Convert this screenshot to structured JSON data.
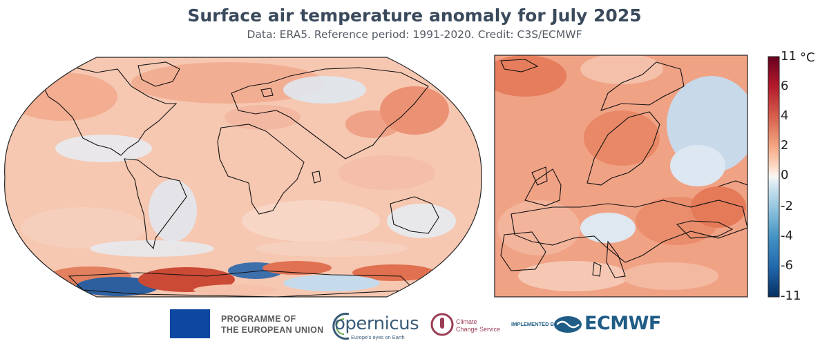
{
  "title": "Surface air temperature anomaly for July 2025",
  "subtitle": "Data: ERA5.  Reference period: 1991-2020.  Credit: C3S/ECMWF",
  "colorbar": {
    "unit": "°C",
    "ticks": [
      "11",
      "6",
      "4",
      "2",
      "0",
      "-2",
      "-4",
      "-6",
      "-11"
    ],
    "colors": [
      "#67001f",
      "#b2182b",
      "#d6604d",
      "#f4a582",
      "#fddbc7",
      "#f7f7f7",
      "#d1e5f0",
      "#92c5de",
      "#4393c3",
      "#2166ac",
      "#053061"
    ]
  },
  "logos": {
    "eu_line1": "PROGRAMME OF",
    "eu_line2": "THE EUROPEAN UNION",
    "copernicus": "opernicus",
    "copernicus_tagline": "Europe's eyes on Earth",
    "c3s_line1": "Climate",
    "c3s_line2": "Change Service",
    "implemented_by": "IMPLEMENTED BY",
    "ecmwf": "ECMWF"
  }
}
